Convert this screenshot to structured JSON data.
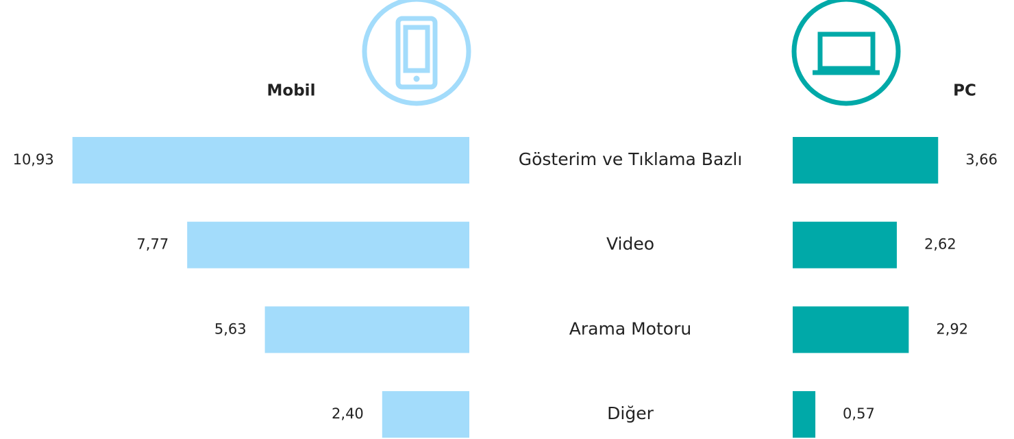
{
  "chart_data": {
    "type": "bar",
    "categories": [
      "Gösterim ve Tıklama Bazlı",
      "Video",
      "Arama Motoru",
      "Diğer"
    ],
    "series": [
      {
        "name": "Mobil",
        "color": "#a3dcfb",
        "values": [
          10.93,
          7.77,
          5.63,
          2.4
        ],
        "value_labels": [
          "10,93",
          "7,77",
          "5,63",
          "2,40"
        ]
      },
      {
        "name": "PC",
        "color": "#00a9a8",
        "values": [
          3.66,
          2.62,
          2.92,
          0.57
        ],
        "value_labels": [
          "3,66",
          "2,62",
          "2,92",
          "0,57"
        ]
      }
    ]
  }
}
